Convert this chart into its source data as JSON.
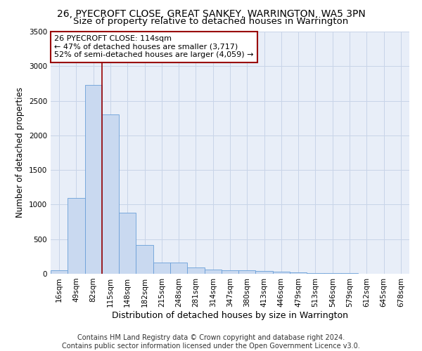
{
  "title1": "26, PYECROFT CLOSE, GREAT SANKEY, WARRINGTON, WA5 3PN",
  "title2": "Size of property relative to detached houses in Warrington",
  "xlabel": "Distribution of detached houses by size in Warrington",
  "ylabel": "Number of detached properties",
  "footer1": "Contains HM Land Registry data © Crown copyright and database right 2024.",
  "footer2": "Contains public sector information licensed under the Open Government Licence v3.0.",
  "bar_color": "#c9d9f0",
  "bar_edge_color": "#6a9fd8",
  "grid_color": "#c8d4e8",
  "background_color": "#e8eef8",
  "annotation_text": "26 PYECROFT CLOSE: 114sqm\n← 47% of detached houses are smaller (3,717)\n52% of semi-detached houses are larger (4,059) →",
  "vline_color": "#990000",
  "categories": [
    "16sqm",
    "49sqm",
    "82sqm",
    "115sqm",
    "148sqm",
    "182sqm",
    "215sqm",
    "248sqm",
    "281sqm",
    "314sqm",
    "347sqm",
    "380sqm",
    "413sqm",
    "446sqm",
    "479sqm",
    "513sqm",
    "546sqm",
    "579sqm",
    "612sqm",
    "645sqm",
    "678sqm"
  ],
  "values": [
    55,
    1100,
    2725,
    2300,
    880,
    420,
    165,
    165,
    90,
    65,
    55,
    50,
    40,
    30,
    25,
    15,
    12,
    8,
    5,
    3,
    2
  ],
  "ylim": [
    0,
    3500
  ],
  "yticks": [
    0,
    500,
    1000,
    1500,
    2000,
    2500,
    3000,
    3500
  ],
  "vline_bar_index": 2,
  "title1_fontsize": 10,
  "title2_fontsize": 9.5,
  "xlabel_fontsize": 9,
  "ylabel_fontsize": 8.5,
  "tick_fontsize": 7.5,
  "annotation_fontsize": 8,
  "footer_fontsize": 7
}
